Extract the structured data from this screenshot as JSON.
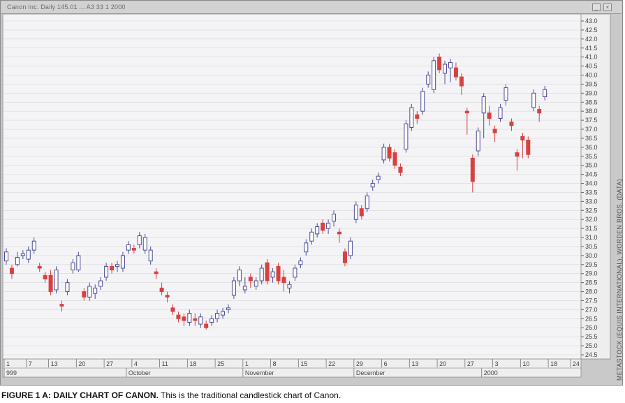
{
  "window": {
    "title": "Canon Inc. Daily 145.01   ...   A3 33 1 2000",
    "minimize_label": "_",
    "close_label": "×"
  },
  "side_label": "METASTOCK (EQUIS INTERNATIONAL), WORDEN BROS. (DATA)",
  "caption": {
    "bold": "FIGURE 1 A:  DAILY CHART OF CANON.",
    "text": " This is the traditional candlestick chart of Canon."
  },
  "colors": {
    "up": "#4a4a9a",
    "down": "#d94040",
    "up_filled": "#2e2e70",
    "wick": "#9aa0c0",
    "grid": "#d8d8d8"
  },
  "chart_data": {
    "type": "candlestick",
    "ylim": [
      24.5,
      43.0
    ],
    "y_ticks": [
      "43.0",
      "42.5",
      "42.0",
      "41.5",
      "41.0",
      "40.5",
      "40.0",
      "39.5",
      "39.0",
      "38.5",
      "38.0",
      "37.5",
      "37.0",
      "36.5",
      "36.0",
      "35.5",
      "35.0",
      "34.5",
      "34.0",
      "33.5",
      "33.0",
      "32.5",
      "32.0",
      "31.5",
      "31.0",
      "30.5",
      "30.0",
      "29.5",
      "29.0",
      "28.5",
      "28.0",
      "27.5",
      "27.0",
      "26.5",
      "26.0",
      "25.5",
      "25.0",
      "24.5"
    ],
    "x_ticks": [
      "1",
      "7",
      "13",
      "20",
      "27",
      "4",
      "11",
      "18",
      "25",
      "1",
      "8",
      "15",
      "22",
      "29",
      "6",
      "13",
      "20",
      "27",
      "3",
      "10",
      "18",
      "24"
    ],
    "x_tick_index": [
      0,
      4,
      8,
      13,
      18,
      23,
      28,
      33,
      38,
      43,
      48,
      53,
      58,
      63,
      68,
      73,
      78,
      83,
      88,
      93,
      98,
      102
    ],
    "months": [
      {
        "label": "999",
        "index": 0
      },
      {
        "label": "October",
        "index": 22
      },
      {
        "label": "November",
        "index": 43
      },
      {
        "label": "December",
        "index": 63
      },
      {
        "label": "2000",
        "index": 86
      }
    ],
    "candles": [
      {
        "o": 29.7,
        "c": 30.2,
        "h": 30.4,
        "l": 29.5
      },
      {
        "o": 29.3,
        "c": 29.0,
        "h": 29.5,
        "l": 28.7
      },
      {
        "o": 29.5,
        "c": 29.9,
        "h": 30.2,
        "l": 29.4
      },
      {
        "o": 30.0,
        "c": 30.1,
        "h": 30.3,
        "l": 29.8
      },
      {
        "o": 29.8,
        "c": 30.3,
        "h": 30.5,
        "l": 29.6
      },
      {
        "o": 30.3,
        "c": 30.8,
        "h": 31.0,
        "l": 30.1
      },
      {
        "o": 29.4,
        "c": 29.3,
        "h": 29.6,
        "l": 29.1
      },
      {
        "o": 28.9,
        "c": 28.7,
        "h": 29.1,
        "l": 28.5
      },
      {
        "o": 28.9,
        "c": 28.0,
        "h": 29.2,
        "l": 27.8
      },
      {
        "o": 28.1,
        "c": 29.2,
        "h": 29.4,
        "l": 27.9
      },
      {
        "o": 27.3,
        "c": 27.2,
        "h": 27.5,
        "l": 26.9
      },
      {
        "o": 28.0,
        "c": 28.5,
        "h": 28.7,
        "l": 27.8
      },
      {
        "o": 29.2,
        "c": 29.6,
        "h": 29.8,
        "l": 29.0
      },
      {
        "o": 29.2,
        "c": 30.0,
        "h": 30.2,
        "l": 29.1
      },
      {
        "o": 28.0,
        "c": 27.7,
        "h": 28.2,
        "l": 27.5
      },
      {
        "o": 27.7,
        "c": 28.3,
        "h": 28.5,
        "l": 27.5
      },
      {
        "o": 27.9,
        "c": 28.2,
        "h": 28.4,
        "l": 27.6
      },
      {
        "o": 28.3,
        "c": 28.6,
        "h": 28.8,
        "l": 28.1
      },
      {
        "o": 28.8,
        "c": 29.4,
        "h": 29.6,
        "l": 28.6
      },
      {
        "o": 29.4,
        "c": 29.2,
        "h": 29.6,
        "l": 29.0
      },
      {
        "o": 29.4,
        "c": 29.5,
        "h": 29.7,
        "l": 29.1
      },
      {
        "o": 29.3,
        "c": 30.0,
        "h": 30.2,
        "l": 29.1
      },
      {
        "o": 30.3,
        "c": 30.6,
        "h": 30.8,
        "l": 30.1
      },
      {
        "o": 30.4,
        "c": 30.3,
        "h": 30.6,
        "l": 30.1
      },
      {
        "o": 30.6,
        "c": 31.1,
        "h": 31.3,
        "l": 30.4
      },
      {
        "o": 30.3,
        "c": 31.0,
        "h": 31.2,
        "l": 30.1
      },
      {
        "o": 29.7,
        "c": 30.3,
        "h": 30.5,
        "l": 29.5
      },
      {
        "o": 29.1,
        "c": 29.0,
        "h": 29.3,
        "l": 28.7
      },
      {
        "o": 28.2,
        "c": 28.0,
        "h": 28.5,
        "l": 27.8
      },
      {
        "o": 27.8,
        "c": 27.7,
        "h": 28.0,
        "l": 27.4
      },
      {
        "o": 27.1,
        "c": 26.9,
        "h": 27.3,
        "l": 26.7
      },
      {
        "o": 26.7,
        "c": 26.5,
        "h": 26.9,
        "l": 26.3
      },
      {
        "o": 26.6,
        "c": 26.4,
        "h": 26.8,
        "l": 26.1
      },
      {
        "o": 26.3,
        "c": 26.8,
        "h": 27.0,
        "l": 26.1
      },
      {
        "o": 26.5,
        "c": 26.4,
        "h": 26.8,
        "l": 26.1
      },
      {
        "o": 26.2,
        "c": 26.6,
        "h": 26.8,
        "l": 26.0
      },
      {
        "o": 26.2,
        "c": 26.0,
        "h": 26.4,
        "l": 25.9
      },
      {
        "o": 26.3,
        "c": 26.5,
        "h": 26.7,
        "l": 26.1
      },
      {
        "o": 26.5,
        "c": 26.8,
        "h": 27.0,
        "l": 26.3
      },
      {
        "o": 26.7,
        "c": 26.9,
        "h": 27.1,
        "l": 26.5
      },
      {
        "o": 27.0,
        "c": 27.1,
        "h": 27.3,
        "l": 26.8
      },
      {
        "o": 27.8,
        "c": 28.6,
        "h": 28.8,
        "l": 27.6
      },
      {
        "o": 28.6,
        "c": 29.2,
        "h": 29.4,
        "l": 28.3
      },
      {
        "o": 28.1,
        "c": 28.3,
        "h": 28.8,
        "l": 27.9
      },
      {
        "o": 28.8,
        "c": 28.6,
        "h": 29.0,
        "l": 28.2
      },
      {
        "o": 28.3,
        "c": 28.6,
        "h": 28.8,
        "l": 28.1
      },
      {
        "o": 28.6,
        "c": 29.3,
        "h": 29.5,
        "l": 28.4
      },
      {
        "o": 29.6,
        "c": 28.6,
        "h": 29.8,
        "l": 28.4
      },
      {
        "o": 28.8,
        "c": 29.1,
        "h": 29.3,
        "l": 28.5
      },
      {
        "o": 29.4,
        "c": 28.6,
        "h": 29.6,
        "l": 28.4
      },
      {
        "o": 28.8,
        "c": 28.5,
        "h": 29.2,
        "l": 28.0
      },
      {
        "o": 28.2,
        "c": 28.4,
        "h": 28.6,
        "l": 27.9
      },
      {
        "o": 28.8,
        "c": 29.3,
        "h": 29.5,
        "l": 28.6
      },
      {
        "o": 29.5,
        "c": 29.7,
        "h": 29.9,
        "l": 29.3
      },
      {
        "o": 30.2,
        "c": 30.7,
        "h": 30.9,
        "l": 30.0
      },
      {
        "o": 30.8,
        "c": 31.3,
        "h": 31.5,
        "l": 30.6
      },
      {
        "o": 31.2,
        "c": 31.6,
        "h": 31.8,
        "l": 31.0
      },
      {
        "o": 31.8,
        "c": 31.4,
        "h": 32.0,
        "l": 31.2
      },
      {
        "o": 31.5,
        "c": 31.8,
        "h": 32.0,
        "l": 31.2
      },
      {
        "o": 31.9,
        "c": 32.3,
        "h": 32.5,
        "l": 31.6
      },
      {
        "o": 31.3,
        "c": 31.2,
        "h": 31.5,
        "l": 30.7
      },
      {
        "o": 30.2,
        "c": 29.6,
        "h": 30.4,
        "l": 29.4
      },
      {
        "o": 30.0,
        "c": 30.8,
        "h": 31.0,
        "l": 29.8
      },
      {
        "o": 32.0,
        "c": 32.8,
        "h": 33.0,
        "l": 31.8
      },
      {
        "o": 32.6,
        "c": 32.2,
        "h": 32.8,
        "l": 32.0
      },
      {
        "o": 32.6,
        "c": 33.3,
        "h": 33.5,
        "l": 32.4
      },
      {
        "o": 33.8,
        "c": 34.0,
        "h": 34.2,
        "l": 33.6
      },
      {
        "o": 34.2,
        "c": 34.4,
        "h": 34.6,
        "l": 34.0
      },
      {
        "o": 35.3,
        "c": 36.0,
        "h": 36.2,
        "l": 35.1
      },
      {
        "o": 36.0,
        "c": 35.4,
        "h": 36.2,
        "l": 35.2
      },
      {
        "o": 35.7,
        "c": 35.0,
        "h": 35.9,
        "l": 34.8
      },
      {
        "o": 34.9,
        "c": 34.6,
        "h": 35.1,
        "l": 34.4
      },
      {
        "o": 35.9,
        "c": 37.3,
        "h": 37.5,
        "l": 35.7
      },
      {
        "o": 37.1,
        "c": 38.2,
        "h": 38.4,
        "l": 36.9
      },
      {
        "o": 37.8,
        "c": 37.6,
        "h": 38.0,
        "l": 37.3
      },
      {
        "o": 38.0,
        "c": 39.1,
        "h": 39.3,
        "l": 37.8
      },
      {
        "o": 39.5,
        "c": 40.0,
        "h": 40.2,
        "l": 39.3
      },
      {
        "o": 39.2,
        "c": 40.8,
        "h": 41.0,
        "l": 39.0
      },
      {
        "o": 41.0,
        "c": 40.3,
        "h": 41.2,
        "l": 40.1
      },
      {
        "o": 40.1,
        "c": 40.6,
        "h": 40.8,
        "l": 39.5
      },
      {
        "o": 40.4,
        "c": 40.7,
        "h": 40.9,
        "l": 39.6
      },
      {
        "o": 40.4,
        "c": 39.9,
        "h": 40.7,
        "l": 39.7
      },
      {
        "o": 39.9,
        "c": 39.4,
        "h": 40.1,
        "l": 38.9
      },
      {
        "o": 38.0,
        "c": 37.9,
        "h": 38.2,
        "l": 36.7
      },
      {
        "o": 35.4,
        "c": 34.1,
        "h": 35.6,
        "l": 33.5
      },
      {
        "o": 35.8,
        "c": 36.9,
        "h": 37.1,
        "l": 35.5
      },
      {
        "o": 37.9,
        "c": 38.8,
        "h": 39.0,
        "l": 36.5
      },
      {
        "o": 37.9,
        "c": 37.6,
        "h": 38.3,
        "l": 37.2
      },
      {
        "o": 37.0,
        "c": 36.8,
        "h": 37.2,
        "l": 36.3
      },
      {
        "o": 37.6,
        "c": 38.2,
        "h": 38.4,
        "l": 37.4
      },
      {
        "o": 38.6,
        "c": 39.3,
        "h": 39.5,
        "l": 38.3
      },
      {
        "o": 37.4,
        "c": 37.2,
        "h": 37.6,
        "l": 36.9
      },
      {
        "o": 35.7,
        "c": 35.5,
        "h": 35.9,
        "l": 34.7
      },
      {
        "o": 36.6,
        "c": 36.4,
        "h": 36.8,
        "l": 35.4
      },
      {
        "o": 36.4,
        "c": 35.6,
        "h": 36.6,
        "l": 35.4
      },
      {
        "o": 38.2,
        "c": 39.0,
        "h": 39.2,
        "l": 38.0
      },
      {
        "o": 38.1,
        "c": 37.9,
        "h": 38.3,
        "l": 37.4
      },
      {
        "o": 38.8,
        "c": 39.2,
        "h": 39.4,
        "l": 38.6
      }
    ]
  }
}
